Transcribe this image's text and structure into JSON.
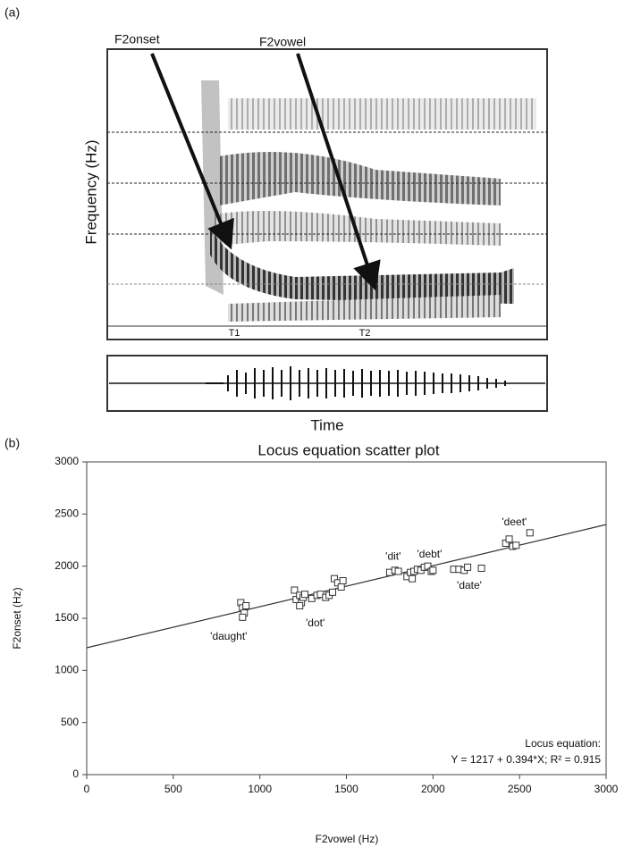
{
  "panel_a": {
    "label": "(a)",
    "arrow_labels": [
      "F2onset",
      "F2vowel"
    ],
    "y_label": "Frequency (Hz)",
    "time_markers": [
      "T1",
      "T2"
    ],
    "x_label": "Time"
  },
  "chart_data": {
    "type": "scatter",
    "panel_label": "(b)",
    "title": "Locus equation scatter plot",
    "x_label": "F2vowel (Hz)",
    "y_label": "F2onset (Hz)",
    "xlim": [
      0,
      3000
    ],
    "ylim": [
      0,
      3000
    ],
    "xticks": [
      0,
      500,
      1000,
      1500,
      2000,
      2500,
      3000
    ],
    "yticks": [
      0,
      500,
      1000,
      1500,
      2000,
      2500,
      3000
    ],
    "marker_color": "#333333",
    "x": [
      890,
      900,
      910,
      900,
      920,
      1200,
      1210,
      1230,
      1240,
      1250,
      1260,
      1230,
      1300,
      1330,
      1350,
      1380,
      1400,
      1430,
      1450,
      1470,
      1480,
      1420,
      1750,
      1780,
      1800,
      1850,
      1870,
      1890,
      1910,
      1930,
      1950,
      1970,
      1990,
      2000,
      1880,
      2120,
      2150,
      2180,
      2200,
      2280,
      2420,
      2440,
      2460,
      2480,
      2560
    ],
    "y": [
      1650,
      1600,
      1550,
      1510,
      1620,
      1770,
      1680,
      1720,
      1650,
      1700,
      1730,
      1620,
      1690,
      1720,
      1730,
      1700,
      1720,
      1880,
      1840,
      1800,
      1860,
      1750,
      1940,
      1960,
      1950,
      1900,
      1940,
      1950,
      1970,
      1960,
      1990,
      2000,
      1950,
      1960,
      1880,
      1970,
      1970,
      1960,
      1990,
      1980,
      2220,
      2260,
      2190,
      2200,
      2320
    ],
    "fit": {
      "intercept": 1217,
      "slope": 0.394,
      "color": "#333333"
    },
    "annotations": [
      {
        "text": "'daught'",
        "x": 820,
        "y": 1320
      },
      {
        "text": "'dot'",
        "x": 1320,
        "y": 1450
      },
      {
        "text": "'dit'",
        "x": 1770,
        "y": 2090
      },
      {
        "text": "'debt'",
        "x": 1980,
        "y": 2110
      },
      {
        "text": "'date'",
        "x": 2210,
        "y": 1810
      },
      {
        "text": "'deet'",
        "x": 2470,
        "y": 2420
      }
    ],
    "equation_label": "Locus equation:",
    "equation": "Y = 1217 + 0.394*X; R² = 0.915"
  }
}
